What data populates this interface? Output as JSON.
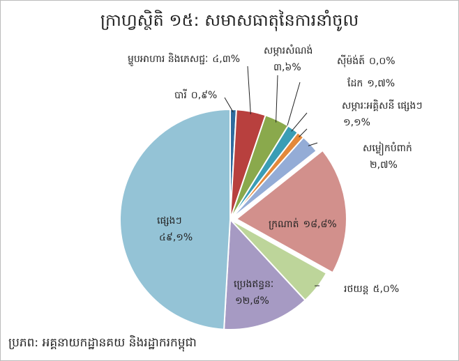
{
  "chart_data": {
    "type": "pie",
    "title": "ក្រាហ្វស្ថិតិ ១៥: សមាសធាតុនៃការនាំចូល",
    "source": "ប្រភព: អគ្គនាយកដ្ឋានគយ និងរដ្ឋាករកម្ពុជា",
    "categories": [
      "បារី",
      "ម្ហូបអាហារ និងភេសជ្ជៈ",
      "សម្ភារសំណង់",
      "ស៊ីម៉ង់ត៍",
      "ដែក",
      "សម្ភារៈអគ្គិសនី ផ្សេងៗ",
      "សម្លៀកបំពាក់",
      "ក្រណាត់",
      "រថយន្ត",
      "ប្រេងឥន្ធនៈ",
      "ផ្សេងៗ"
    ],
    "values": [
      0.9,
      4.3,
      3.6,
      0.0,
      1.7,
      1.1,
      2.7,
      18.8,
      5.0,
      12.8,
      49.1
    ],
    "value_labels": [
      "០,៩%",
      "៤,៣%",
      "៣,៦%",
      "០,០%",
      "១,៧%",
      "១,១%",
      "២,៧%",
      "១៨,៨%",
      "៥,០%",
      "១២,៨%",
      "៤៩,១%"
    ],
    "colors": [
      "#2f6b9e",
      "#b8403e",
      "#8aa94c",
      "#6a8fc0",
      "#3a9db5",
      "#e3883a",
      "#94acd6",
      "#d2908c",
      "#bdd59a",
      "#a69ac3",
      "#94c3d6"
    ]
  }
}
